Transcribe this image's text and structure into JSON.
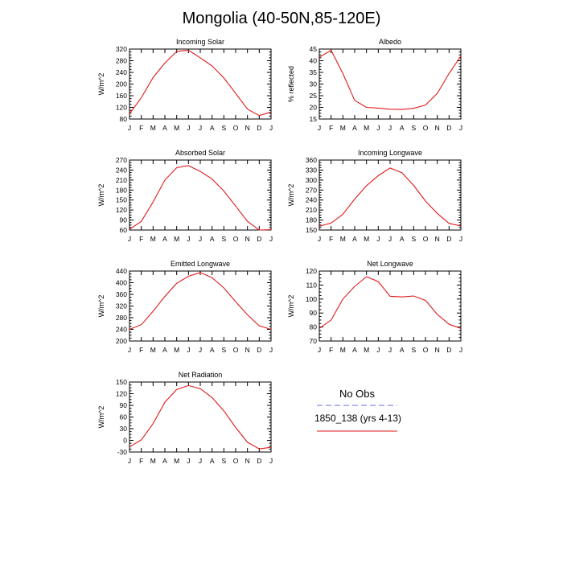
{
  "title": "Mongolia (40-50N,85-120E)",
  "legend": {
    "title": "No Obs",
    "series_label": "1850_138 (yrs 4-13)",
    "obs_color": "#6a6af0",
    "model_color": "#e11a1a"
  },
  "colors": {
    "line": "#e11a1a",
    "axis": "#000000"
  },
  "chart_data": [
    {
      "type": "line",
      "title": "Incoming Solar",
      "ylabel": "W/m^2",
      "ylim": [
        80,
        320
      ],
      "yticks": [
        80,
        120,
        160,
        200,
        240,
        280,
        320
      ],
      "categories": [
        "J",
        "F",
        "M",
        "A",
        "M",
        "J",
        "J",
        "A",
        "S",
        "O",
        "N",
        "D",
        "J"
      ],
      "series": [
        {
          "values": [
            98,
            153,
            222,
            272,
            312,
            316,
            290,
            262,
            221,
            168,
            114,
            92,
            104
          ]
        }
      ]
    },
    {
      "type": "line",
      "title": "Albedo",
      "ylabel": "% reflected",
      "ylim": [
        15,
        45
      ],
      "yticks": [
        15,
        20,
        25,
        30,
        35,
        40,
        45
      ],
      "categories": [
        "J",
        "F",
        "M",
        "A",
        "M",
        "J",
        "J",
        "A",
        "S",
        "O",
        "N",
        "D",
        "J"
      ],
      "series": [
        {
          "values": [
            41.5,
            44.5,
            34.5,
            23,
            20,
            19.7,
            19.2,
            19.1,
            19.6,
            21,
            26,
            34.5,
            42
          ]
        }
      ]
    },
    {
      "type": "line",
      "title": "Absorbed Solar",
      "ylabel": "W/m^2",
      "ylim": [
        60,
        270
      ],
      "yticks": [
        60,
        90,
        120,
        150,
        180,
        210,
        240,
        270
      ],
      "categories": [
        "J",
        "F",
        "M",
        "A",
        "M",
        "J",
        "J",
        "A",
        "S",
        "O",
        "N",
        "D",
        "J"
      ],
      "series": [
        {
          "values": [
            62,
            86,
            144,
            210,
            247,
            253,
            236,
            213,
            177,
            132,
            86,
            60,
            61
          ]
        }
      ]
    },
    {
      "type": "line",
      "title": "Incoming Longwave",
      "ylabel": "W/m^2",
      "ylim": [
        150,
        360
      ],
      "yticks": [
        150,
        180,
        210,
        240,
        270,
        300,
        330,
        360
      ],
      "categories": [
        "J",
        "F",
        "M",
        "A",
        "M",
        "J",
        "J",
        "A",
        "S",
        "O",
        "N",
        "D",
        "J"
      ],
      "series": [
        {
          "values": [
            161,
            171,
            197,
            243,
            283,
            313,
            336,
            322,
            284,
            237,
            200,
            170,
            162
          ]
        }
      ]
    },
    {
      "type": "line",
      "title": "Emitted Longwave",
      "ylabel": "W/m^2",
      "ylim": [
        200,
        440
      ],
      "yticks": [
        200,
        240,
        280,
        320,
        360,
        400,
        440
      ],
      "categories": [
        "J",
        "F",
        "M",
        "A",
        "M",
        "J",
        "J",
        "A",
        "S",
        "O",
        "N",
        "D",
        "J"
      ],
      "series": [
        {
          "values": [
            240,
            256,
            302,
            353,
            398,
            422,
            435,
            417,
            382,
            335,
            290,
            252,
            240
          ]
        }
      ]
    },
    {
      "type": "line",
      "title": "Net Longwave",
      "ylabel": "W/m^2",
      "ylim": [
        70,
        120
      ],
      "yticks": [
        70,
        80,
        90,
        100,
        110,
        120
      ],
      "categories": [
        "J",
        "F",
        "M",
        "A",
        "M",
        "J",
        "J",
        "A",
        "S",
        "O",
        "N",
        "D",
        "J"
      ],
      "series": [
        {
          "values": [
            79,
            85,
            100,
            109,
            116,
            112.5,
            102,
            101.5,
            102.2,
            99,
            89,
            82,
            79
          ]
        }
      ]
    },
    {
      "type": "line",
      "title": "Net Radiation",
      "ylabel": "W/m^2",
      "ylim": [
        -30,
        150
      ],
      "yticks": [
        -30,
        0,
        30,
        60,
        90,
        120,
        150
      ],
      "categories": [
        "J",
        "F",
        "M",
        "A",
        "M",
        "J",
        "J",
        "A",
        "S",
        "O",
        "N",
        "D",
        "J"
      ],
      "series": [
        {
          "values": [
            -17,
            1,
            43,
            98,
            131,
            141,
            133,
            110,
            76,
            33,
            -5,
            -22,
            -18
          ]
        }
      ]
    }
  ]
}
